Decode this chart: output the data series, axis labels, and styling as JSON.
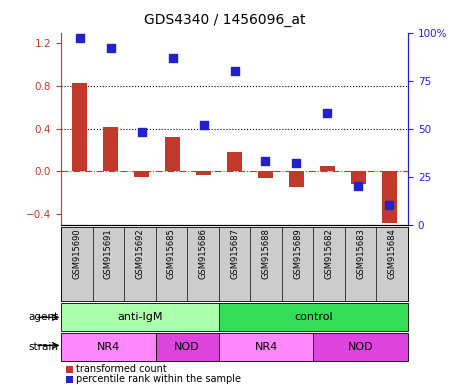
{
  "title": "GDS4340 / 1456096_at",
  "samples": [
    "GSM915690",
    "GSM915691",
    "GSM915692",
    "GSM915685",
    "GSM915686",
    "GSM915687",
    "GSM915688",
    "GSM915689",
    "GSM915682",
    "GSM915683",
    "GSM915684"
  ],
  "bar_values": [
    0.83,
    0.42,
    -0.05,
    0.32,
    -0.03,
    0.18,
    -0.06,
    -0.15,
    0.05,
    -0.12,
    -0.48
  ],
  "scatter_values": [
    97,
    92,
    48,
    87,
    52,
    80,
    33,
    32,
    58,
    20,
    10
  ],
  "bar_color": "#C0392B",
  "scatter_color": "#2222CC",
  "ylim_left": [
    -0.5,
    1.3
  ],
  "ylim_right": [
    0,
    100
  ],
  "yticks_left": [
    -0.4,
    0.0,
    0.4,
    0.8,
    1.2
  ],
  "yticks_right": [
    0,
    25,
    50,
    75,
    100
  ],
  "yticklabels_right": [
    "0",
    "25",
    "50",
    "75",
    "100%"
  ],
  "hline_y": [
    0.4,
    0.8
  ],
  "agent_groups": [
    {
      "label": "anti-IgM",
      "start": 0,
      "end": 5,
      "color": "#AAFFAA"
    },
    {
      "label": "control",
      "start": 5,
      "end": 11,
      "color": "#33DD55"
    }
  ],
  "strain_groups": [
    {
      "label": "NR4",
      "start": 0,
      "end": 3,
      "color": "#FF88FF"
    },
    {
      "label": "NOD",
      "start": 3,
      "end": 5,
      "color": "#DD44DD"
    },
    {
      "label": "NR4",
      "start": 5,
      "end": 8,
      "color": "#FF88FF"
    },
    {
      "label": "NOD",
      "start": 8,
      "end": 11,
      "color": "#DD44DD"
    }
  ],
  "legend_items": [
    {
      "label": "transformed count",
      "color": "#C0392B"
    },
    {
      "label": "percentile rank within the sample",
      "color": "#2222CC"
    }
  ],
  "agent_label": "agent",
  "strain_label": "strain",
  "bar_width": 0.5,
  "scatter_size": 35,
  "title_fontsize": 10,
  "tick_fontsize": 7.5,
  "right_tick_color": "#2222CC",
  "left_tick_color": "#C0392B",
  "zero_line_color": "#C0392B",
  "grid_dotted_color": "#000000"
}
